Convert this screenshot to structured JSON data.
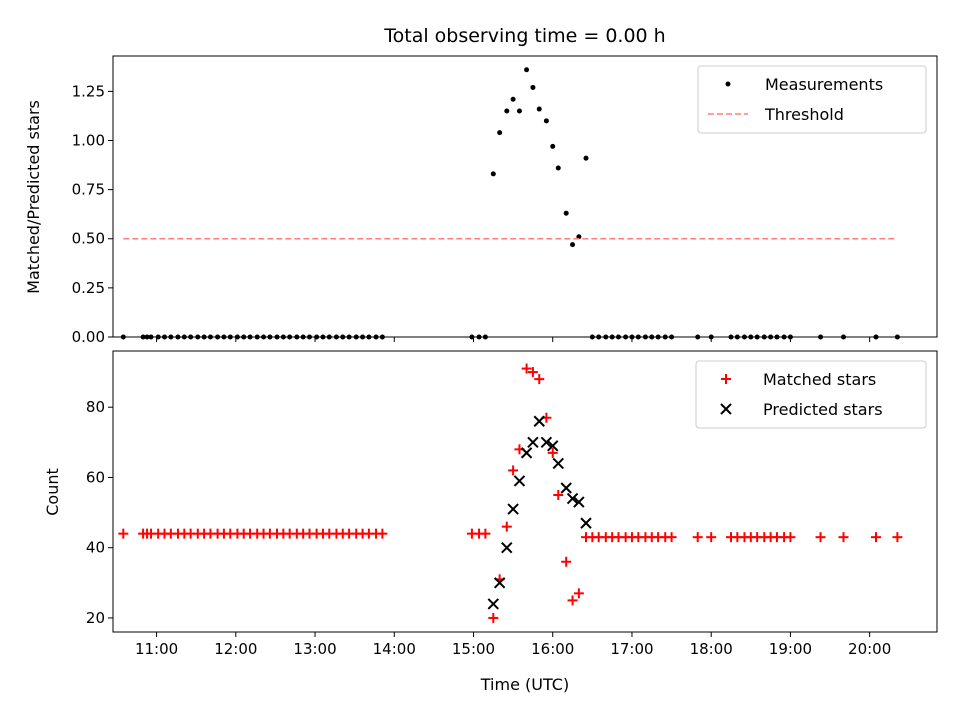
{
  "chart_data": [
    {
      "type": "scatter",
      "title": "Total observing time = 0.00 h",
      "xlabel": "",
      "ylabel": "Matched/Predicted stars",
      "xlim": [
        10.45,
        20.85
      ],
      "ylim": [
        0,
        1.43
      ],
      "yticks": [
        "0.00",
        "0.25",
        "0.50",
        "0.75",
        "1.00",
        "1.25"
      ],
      "grid": false,
      "legend": "upper right",
      "series": [
        {
          "name": "Measurements",
          "marker": "dot",
          "color": "#000000",
          "points": [
            [
              10.58,
              0
            ],
            [
              10.83,
              0
            ],
            [
              10.88,
              0
            ],
            [
              10.93,
              0
            ],
            [
              11.02,
              0
            ],
            [
              11.1,
              0
            ],
            [
              11.18,
              0
            ],
            [
              11.27,
              0
            ],
            [
              11.35,
              0
            ],
            [
              11.43,
              0
            ],
            [
              11.52,
              0
            ],
            [
              11.6,
              0
            ],
            [
              11.68,
              0
            ],
            [
              11.77,
              0
            ],
            [
              11.85,
              0
            ],
            [
              11.93,
              0
            ],
            [
              12.02,
              0
            ],
            [
              12.1,
              0
            ],
            [
              12.18,
              0
            ],
            [
              12.27,
              0
            ],
            [
              12.35,
              0
            ],
            [
              12.43,
              0
            ],
            [
              12.52,
              0
            ],
            [
              12.6,
              0
            ],
            [
              12.68,
              0
            ],
            [
              12.77,
              0
            ],
            [
              12.85,
              0
            ],
            [
              12.93,
              0
            ],
            [
              13.02,
              0
            ],
            [
              13.1,
              0
            ],
            [
              13.18,
              0
            ],
            [
              13.27,
              0
            ],
            [
              13.35,
              0
            ],
            [
              13.43,
              0
            ],
            [
              13.52,
              0
            ],
            [
              13.6,
              0
            ],
            [
              13.68,
              0
            ],
            [
              13.77,
              0
            ],
            [
              13.85,
              0
            ],
            [
              14.98,
              0
            ],
            [
              15.07,
              0
            ],
            [
              15.15,
              0
            ],
            [
              15.25,
              0.83
            ],
            [
              15.33,
              1.04
            ],
            [
              15.42,
              1.15
            ],
            [
              15.5,
              1.21
            ],
            [
              15.58,
              1.15
            ],
            [
              15.67,
              1.36
            ],
            [
              15.75,
              1.27
            ],
            [
              15.83,
              1.16
            ],
            [
              15.92,
              1.1
            ],
            [
              16.0,
              0.97
            ],
            [
              16.07,
              0.86
            ],
            [
              16.17,
              0.63
            ],
            [
              16.25,
              0.47
            ],
            [
              16.33,
              0.51
            ],
            [
              16.42,
              0.91
            ],
            [
              16.5,
              0
            ],
            [
              16.58,
              0
            ],
            [
              16.67,
              0
            ],
            [
              16.75,
              0
            ],
            [
              16.83,
              0
            ],
            [
              16.92,
              0
            ],
            [
              17.0,
              0
            ],
            [
              17.08,
              0
            ],
            [
              17.17,
              0
            ],
            [
              17.25,
              0
            ],
            [
              17.33,
              0
            ],
            [
              17.42,
              0
            ],
            [
              17.5,
              0
            ],
            [
              17.83,
              0
            ],
            [
              18.0,
              0
            ],
            [
              18.25,
              0
            ],
            [
              18.33,
              0
            ],
            [
              18.42,
              0
            ],
            [
              18.5,
              0
            ],
            [
              18.58,
              0
            ],
            [
              18.67,
              0
            ],
            [
              18.75,
              0
            ],
            [
              18.83,
              0
            ],
            [
              18.92,
              0
            ],
            [
              19.0,
              0
            ],
            [
              19.38,
              0
            ],
            [
              19.67,
              0
            ],
            [
              20.08,
              0
            ],
            [
              20.35,
              0
            ]
          ]
        },
        {
          "name": "Threshold",
          "marker": "dashed-line",
          "color": "#ff7f7f",
          "points": [
            [
              10.58,
              0.5
            ],
            [
              20.35,
              0.5
            ]
          ]
        }
      ]
    },
    {
      "type": "scatter",
      "title": "",
      "xlabel": "Time (UTC)",
      "ylabel": "Count",
      "xlim": [
        10.45,
        20.85
      ],
      "ylim": [
        16,
        96
      ],
      "yticks": [
        "20",
        "40",
        "60",
        "80"
      ],
      "xticks": [
        "11:00",
        "12:00",
        "13:00",
        "14:00",
        "15:00",
        "16:00",
        "17:00",
        "18:00",
        "19:00",
        "20:00"
      ],
      "grid": false,
      "legend": "upper right",
      "series": [
        {
          "name": "Matched stars",
          "marker": "plus",
          "color": "#ff0000",
          "points": [
            [
              10.58,
              44
            ],
            [
              10.83,
              44
            ],
            [
              10.88,
              44
            ],
            [
              10.93,
              44
            ],
            [
              11.02,
              44
            ],
            [
              11.1,
              44
            ],
            [
              11.18,
              44
            ],
            [
              11.27,
              44
            ],
            [
              11.35,
              44
            ],
            [
              11.43,
              44
            ],
            [
              11.52,
              44
            ],
            [
              11.6,
              44
            ],
            [
              11.68,
              44
            ],
            [
              11.77,
              44
            ],
            [
              11.85,
              44
            ],
            [
              11.93,
              44
            ],
            [
              12.02,
              44
            ],
            [
              12.1,
              44
            ],
            [
              12.18,
              44
            ],
            [
              12.27,
              44
            ],
            [
              12.35,
              44
            ],
            [
              12.43,
              44
            ],
            [
              12.52,
              44
            ],
            [
              12.6,
              44
            ],
            [
              12.68,
              44
            ],
            [
              12.77,
              44
            ],
            [
              12.85,
              44
            ],
            [
              12.93,
              44
            ],
            [
              13.02,
              44
            ],
            [
              13.1,
              44
            ],
            [
              13.18,
              44
            ],
            [
              13.27,
              44
            ],
            [
              13.35,
              44
            ],
            [
              13.43,
              44
            ],
            [
              13.52,
              44
            ],
            [
              13.6,
              44
            ],
            [
              13.68,
              44
            ],
            [
              13.77,
              44
            ],
            [
              13.85,
              44
            ],
            [
              14.98,
              44
            ],
            [
              15.07,
              44
            ],
            [
              15.15,
              44
            ],
            [
              15.25,
              20
            ],
            [
              15.33,
              31
            ],
            [
              15.42,
              46
            ],
            [
              15.5,
              62
            ],
            [
              15.58,
              68
            ],
            [
              15.67,
              91
            ],
            [
              15.75,
              90
            ],
            [
              15.83,
              88
            ],
            [
              15.92,
              77
            ],
            [
              16.0,
              67
            ],
            [
              16.07,
              55
            ],
            [
              16.17,
              36
            ],
            [
              16.25,
              25
            ],
            [
              16.33,
              27
            ],
            [
              16.42,
              43
            ],
            [
              16.5,
              43
            ],
            [
              16.58,
              43
            ],
            [
              16.67,
              43
            ],
            [
              16.75,
              43
            ],
            [
              16.83,
              43
            ],
            [
              16.92,
              43
            ],
            [
              17.0,
              43
            ],
            [
              17.08,
              43
            ],
            [
              17.17,
              43
            ],
            [
              17.25,
              43
            ],
            [
              17.33,
              43
            ],
            [
              17.42,
              43
            ],
            [
              17.5,
              43
            ],
            [
              17.83,
              43
            ],
            [
              18.0,
              43
            ],
            [
              18.25,
              43
            ],
            [
              18.33,
              43
            ],
            [
              18.42,
              43
            ],
            [
              18.5,
              43
            ],
            [
              18.58,
              43
            ],
            [
              18.67,
              43
            ],
            [
              18.75,
              43
            ],
            [
              18.83,
              43
            ],
            [
              18.92,
              43
            ],
            [
              19.0,
              43
            ],
            [
              19.38,
              43
            ],
            [
              19.67,
              43
            ],
            [
              20.08,
              43
            ],
            [
              20.35,
              43
            ]
          ]
        },
        {
          "name": "Predicted stars",
          "marker": "x",
          "color": "#000000",
          "points": [
            [
              15.25,
              24
            ],
            [
              15.33,
              30
            ],
            [
              15.42,
              40
            ],
            [
              15.5,
              51
            ],
            [
              15.58,
              59
            ],
            [
              15.67,
              67
            ],
            [
              15.75,
              70
            ],
            [
              15.83,
              76
            ],
            [
              15.92,
              70
            ],
            [
              16.0,
              69
            ],
            [
              16.07,
              64
            ],
            [
              16.17,
              57
            ],
            [
              16.25,
              54
            ],
            [
              16.33,
              53
            ],
            [
              16.42,
              47
            ]
          ]
        }
      ]
    }
  ]
}
